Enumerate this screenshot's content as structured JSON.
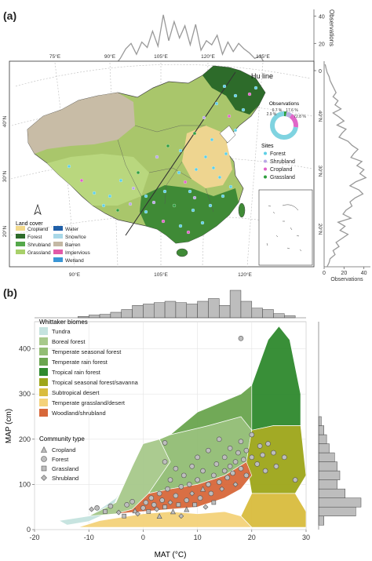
{
  "panel_a": {
    "label": "(a)",
    "top_hist": {
      "axis_title": "Observations",
      "ticks": [
        "40",
        "20",
        "0"
      ],
      "counts": [
        0,
        0,
        0,
        0,
        0,
        0,
        0,
        0,
        0,
        0,
        0,
        0,
        0,
        0,
        0,
        1,
        2,
        4,
        9,
        16,
        20,
        12,
        21,
        17,
        29,
        18,
        41,
        22,
        36,
        24,
        33,
        19,
        34,
        15,
        22,
        19,
        26,
        12,
        21,
        14,
        20,
        16,
        13,
        9,
        11,
        4,
        3,
        0,
        0,
        0,
        0,
        0,
        0,
        0,
        0
      ]
    },
    "right_hist": {
      "axis_title": "Observations",
      "ticks": [
        "0",
        "20",
        "40"
      ],
      "counts": [
        1,
        2,
        3,
        5,
        6,
        8,
        10,
        12,
        9,
        14,
        11,
        17,
        9,
        15,
        20,
        13,
        22,
        18,
        15,
        24,
        28,
        34,
        30,
        27,
        38,
        33,
        40,
        36,
        42,
        32,
        26,
        35,
        39,
        31,
        26,
        28,
        22,
        19,
        27,
        14,
        21,
        16,
        24,
        18,
        12,
        15,
        9,
        11,
        6,
        5,
        3
      ]
    },
    "lon_ticks": [
      "75°E",
      "90°E",
      "105°E",
      "120°E",
      "135°E"
    ],
    "lon_ticks_bottom": [
      "90°E",
      "105°E",
      "120°E"
    ],
    "lat_ticks": [
      "40°N",
      "30°N",
      "20°N"
    ],
    "lat_ticks_right": [
      "40°N",
      "30°N",
      "20°N"
    ],
    "hu_line_label": "Hu line",
    "donut": {
      "title": "Observations",
      "percents": [
        "2.9 %",
        "6.7 %",
        "17.6 %",
        "72.8 %"
      ],
      "values": [
        2.9,
        6.7,
        17.6,
        72.8
      ],
      "colors": [
        "#2e9e3e",
        "#b8b0e0",
        "#e067c8",
        "#7fd3e0"
      ]
    },
    "sites": {
      "title": "Sites",
      "items": [
        {
          "label": "Forest",
          "color": "#5ecfe6"
        },
        {
          "label": "Shrubland",
          "color": "#b9a6e6"
        },
        {
          "label": "Cropland",
          "color": "#e062c8"
        },
        {
          "label": "Grassland",
          "color": "#2e9e3e"
        }
      ]
    },
    "land_cover": {
      "title": "Land cover",
      "items": [
        {
          "label": "Cropland",
          "color": "#f2d98a"
        },
        {
          "label": "Forest",
          "color": "#2d6b2a"
        },
        {
          "label": "Shrubland",
          "color": "#54a84a"
        },
        {
          "label": "Grassland",
          "color": "#a8d06a"
        },
        {
          "label": "Water",
          "color": "#1f5fa8"
        },
        {
          "label": "Snow/Ice",
          "color": "#a9d8e8"
        },
        {
          "label": "Barren",
          "color": "#c4b8a4"
        },
        {
          "label": "Impervious",
          "color": "#e25aa8"
        },
        {
          "label": "Wetland",
          "color": "#3a96d6"
        }
      ]
    },
    "north_icon": "north-arrow"
  },
  "panel_b": {
    "label": "(b)",
    "legend_biomes_title": "Whittaker biomes",
    "biomes": [
      {
        "label": "Tundra",
        "color": "#c5e3df"
      },
      {
        "label": "Boreal forest",
        "color": "#a7c98b"
      },
      {
        "label": "Temperate seasonal forest",
        "color": "#92bd74"
      },
      {
        "label": "Temperate rain forest",
        "color": "#6aa54f"
      },
      {
        "label": "Tropical rain forest",
        "color": "#2f8a2e"
      },
      {
        "label": "Tropical seasonal forest/savanna",
        "color": "#9ea61a"
      },
      {
        "label": "Subtropical desert",
        "color": "#d9bc3e"
      },
      {
        "label": "Temperate grassland/desert",
        "color": "#f4d27a"
      },
      {
        "label": "Woodland/shrubland",
        "color": "#d7683a"
      }
    ],
    "legend_community_title": "Community type",
    "communities": [
      {
        "label": "Cropland",
        "shape": "triangle"
      },
      {
        "label": "Forest",
        "shape": "circle"
      },
      {
        "label": "Grassland",
        "shape": "square"
      },
      {
        "label": "Shrubland",
        "shape": "diamond"
      }
    ]
  },
  "chart_data": [
    {
      "type": "scatter",
      "xlabel": "MAT (°C)",
      "ylabel": "MAP (cm)",
      "xlim": [
        -20,
        30
      ],
      "ylim": [
        0,
        460
      ],
      "x_ticks": [
        -20,
        -10,
        0,
        10,
        20,
        30
      ],
      "y_ticks": [
        0,
        100,
        200,
        300,
        400
      ],
      "grid": true,
      "points": [
        {
          "x": -9.5,
          "y": 45,
          "type": "Shrubland"
        },
        {
          "x": -8.5,
          "y": 48,
          "type": "Forest"
        },
        {
          "x": -7,
          "y": 40,
          "type": "Grassland"
        },
        {
          "x": -6,
          "y": 52,
          "type": "Forest"
        },
        {
          "x": -4.5,
          "y": 38,
          "type": "Shrubland"
        },
        {
          "x": -3.5,
          "y": 30,
          "type": "Grassland"
        },
        {
          "x": -3,
          "y": 55,
          "type": "Forest"
        },
        {
          "x": -2,
          "y": 62,
          "type": "Forest"
        },
        {
          "x": -1.5,
          "y": 42,
          "type": "Cropland"
        },
        {
          "x": -1,
          "y": 35,
          "type": "Shrubland"
        },
        {
          "x": 0,
          "y": 48,
          "type": "Forest"
        },
        {
          "x": 0.5,
          "y": 60,
          "type": "Forest"
        },
        {
          "x": 1,
          "y": 40,
          "type": "Grassland"
        },
        {
          "x": 1.5,
          "y": 70,
          "type": "Forest"
        },
        {
          "x": 2,
          "y": 55,
          "type": "Forest"
        },
        {
          "x": 2.5,
          "y": 45,
          "type": "Shrubland"
        },
        {
          "x": 3,
          "y": 80,
          "type": "Forest"
        },
        {
          "x": 3,
          "y": 30,
          "type": "Cropland"
        },
        {
          "x": 3.5,
          "y": 65,
          "type": "Forest"
        },
        {
          "x": 4,
          "y": 50,
          "type": "Grassland"
        },
        {
          "x": 4,
          "y": 150,
          "type": "Forest"
        },
        {
          "x": 4,
          "y": 192,
          "type": "Forest"
        },
        {
          "x": 4.5,
          "y": 90,
          "type": "Forest"
        },
        {
          "x": 5,
          "y": 60,
          "type": "Shrubland"
        },
        {
          "x": 5,
          "y": 110,
          "type": "Forest"
        },
        {
          "x": 5.5,
          "y": 40,
          "type": "Cropland"
        },
        {
          "x": 6,
          "y": 75,
          "type": "Forest"
        },
        {
          "x": 6,
          "y": 135,
          "type": "Forest"
        },
        {
          "x": 6.5,
          "y": 55,
          "type": "Grassland"
        },
        {
          "x": 7,
          "y": 95,
          "type": "Forest"
        },
        {
          "x": 7,
          "y": 30,
          "type": "Shrubland"
        },
        {
          "x": 7.5,
          "y": 120,
          "type": "Forest"
        },
        {
          "x": 8,
          "y": 65,
          "type": "Forest"
        },
        {
          "x": 8,
          "y": 45,
          "type": "Cropland"
        },
        {
          "x": 8.5,
          "y": 100,
          "type": "Forest"
        },
        {
          "x": 9,
          "y": 140,
          "type": "Forest"
        },
        {
          "x": 9,
          "y": 80,
          "type": "Shrubland"
        },
        {
          "x": 9.5,
          "y": 55,
          "type": "Grassland"
        },
        {
          "x": 10,
          "y": 110,
          "type": "Forest"
        },
        {
          "x": 10,
          "y": 160,
          "type": "Forest"
        },
        {
          "x": 10.5,
          "y": 70,
          "type": "Forest"
        },
        {
          "x": 11,
          "y": 90,
          "type": "Cropland"
        },
        {
          "x": 11,
          "y": 130,
          "type": "Forest"
        },
        {
          "x": 11.5,
          "y": 50,
          "type": "Shrubland"
        },
        {
          "x": 12,
          "y": 100,
          "type": "Forest"
        },
        {
          "x": 12,
          "y": 175,
          "type": "Forest"
        },
        {
          "x": 12.5,
          "y": 80,
          "type": "Forest"
        },
        {
          "x": 13,
          "y": 120,
          "type": "Forest"
        },
        {
          "x": 13,
          "y": 60,
          "type": "Grassland"
        },
        {
          "x": 13.5,
          "y": 145,
          "type": "Forest"
        },
        {
          "x": 14,
          "y": 105,
          "type": "Forest"
        },
        {
          "x": 14,
          "y": 200,
          "type": "Forest"
        },
        {
          "x": 14.5,
          "y": 90,
          "type": "Shrubland"
        },
        {
          "x": 15,
          "y": 130,
          "type": "Forest"
        },
        {
          "x": 15,
          "y": 160,
          "type": "Forest"
        },
        {
          "x": 15.5,
          "y": 115,
          "type": "Forest"
        },
        {
          "x": 16,
          "y": 140,
          "type": "Forest"
        },
        {
          "x": 16,
          "y": 180,
          "type": "Forest"
        },
        {
          "x": 16.5,
          "y": 125,
          "type": "Forest"
        },
        {
          "x": 17,
          "y": 150,
          "type": "Forest"
        },
        {
          "x": 17,
          "y": 100,
          "type": "Shrubland"
        },
        {
          "x": 17.5,
          "y": 170,
          "type": "Forest"
        },
        {
          "x": 18,
          "y": 135,
          "type": "Forest"
        },
        {
          "x": 18,
          "y": 195,
          "type": "Forest"
        },
        {
          "x": 18.5,
          "y": 155,
          "type": "Forest"
        },
        {
          "x": 19,
          "y": 120,
          "type": "Forest"
        },
        {
          "x": 19,
          "y": 175,
          "type": "Forest"
        },
        {
          "x": 20,
          "y": 160,
          "type": "Forest"
        },
        {
          "x": 20,
          "y": 210,
          "type": "Forest"
        },
        {
          "x": 21,
          "y": 145,
          "type": "Forest"
        },
        {
          "x": 21.5,
          "y": 185,
          "type": "Forest"
        },
        {
          "x": 22,
          "y": 165,
          "type": "Forest"
        },
        {
          "x": 22.5,
          "y": 130,
          "type": "Forest"
        },
        {
          "x": 23,
          "y": 190,
          "type": "Forest"
        },
        {
          "x": 24,
          "y": 170,
          "type": "Forest"
        },
        {
          "x": 24.5,
          "y": 140,
          "type": "Forest"
        },
        {
          "x": 26,
          "y": 160,
          "type": "Forest"
        },
        {
          "x": 28,
          "y": 110,
          "type": "Forest"
        },
        {
          "x": 18,
          "y": 423,
          "type": "Forest"
        }
      ]
    },
    {
      "type": "bar",
      "axis": "top-histogram-MAT",
      "x": [
        -11,
        -9,
        -7,
        -5,
        -3,
        -1,
        1,
        3,
        5,
        7,
        9,
        11,
        13,
        15,
        17,
        19,
        21,
        23,
        25,
        27
      ],
      "values": [
        2,
        4,
        5,
        8,
        12,
        18,
        20,
        22,
        24,
        22,
        20,
        24,
        28,
        18,
        40,
        24,
        14,
        12,
        6,
        3
      ]
    },
    {
      "type": "bar",
      "axis": "right-histogram-MAP",
      "y": [
        20,
        40,
        60,
        80,
        100,
        120,
        140,
        160,
        180,
        200,
        220,
        240
      ],
      "values": [
        4,
        28,
        32,
        20,
        14,
        16,
        14,
        12,
        8,
        6,
        4,
        2
      ]
    }
  ]
}
